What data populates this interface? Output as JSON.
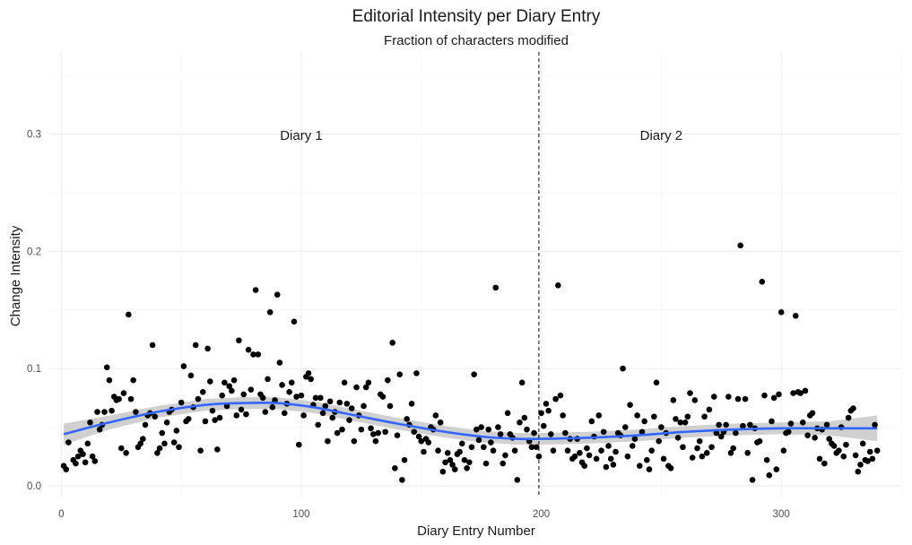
{
  "chart_data": {
    "type": "scatter",
    "title": "Editorial Intensity per Diary Entry",
    "subtitle": "Fraction of characters modified",
    "xlabel": "Diary Entry Number",
    "ylabel": "Change Intensity",
    "xlim": [
      -5,
      350
    ],
    "ylim": [
      -0.01,
      0.37
    ],
    "x_ticks": [
      0,
      100,
      200,
      300
    ],
    "y_ticks": [
      0.0,
      0.1,
      0.2,
      0.3
    ],
    "y_tick_labels": [
      "0.0",
      "0.1",
      "0.2",
      "0.3"
    ],
    "grid": true,
    "vline": {
      "x": 199,
      "style": "dashed"
    },
    "annotations": [
      {
        "text": "Diary 1",
        "x": 100,
        "y": 0.299
      },
      {
        "text": "Diary 2",
        "x": 250,
        "y": 0.299
      }
    ],
    "colors": {
      "points": "#000000",
      "smooth": "#3366ff",
      "ribbon": "#c8c8c8"
    },
    "smooth": {
      "x": [
        1,
        20,
        40,
        60,
        75,
        90,
        105,
        120,
        140,
        160,
        175,
        190,
        200,
        220,
        240,
        260,
        280,
        300,
        320,
        340
      ],
      "y": [
        0.044,
        0.054,
        0.063,
        0.069,
        0.0705,
        0.0705,
        0.067,
        0.061,
        0.053,
        0.046,
        0.042,
        0.04,
        0.04,
        0.041,
        0.043,
        0.046,
        0.048,
        0.049,
        0.049,
        0.049
      ],
      "se": [
        0.009,
        0.006,
        0.005,
        0.005,
        0.005,
        0.005,
        0.005,
        0.005,
        0.005,
        0.005,
        0.005,
        0.005,
        0.005,
        0.005,
        0.005,
        0.005,
        0.005,
        0.005,
        0.006,
        0.011
      ]
    },
    "points": [
      [
        1,
        0.017
      ],
      [
        2,
        0.014
      ],
      [
        3,
        0.037
      ],
      [
        5,
        0.022
      ],
      [
        6,
        0.019
      ],
      [
        7,
        0.025
      ],
      [
        8,
        0.03
      ],
      [
        9,
        0.027
      ],
      [
        10,
        0.02
      ],
      [
        11,
        0.036
      ],
      [
        12,
        0.054
      ],
      [
        13,
        0.025
      ],
      [
        14,
        0.021
      ],
      [
        15,
        0.063
      ],
      [
        16,
        0.048
      ],
      [
        17,
        0.052
      ],
      [
        18,
        0.063
      ],
      [
        19,
        0.101
      ],
      [
        20,
        0.09
      ],
      [
        21,
        0.064
      ],
      [
        22,
        0.076
      ],
      [
        23,
        0.073
      ],
      [
        24,
        0.074
      ],
      [
        25,
        0.032
      ],
      [
        26,
        0.079
      ],
      [
        27,
        0.028
      ],
      [
        28,
        0.146
      ],
      [
        29,
        0.074
      ],
      [
        30,
        0.09
      ],
      [
        31,
        0.063
      ],
      [
        32,
        0.033
      ],
      [
        33,
        0.036
      ],
      [
        34,
        0.04
      ],
      [
        35,
        0.052
      ],
      [
        36,
        0.06
      ],
      [
        37,
        0.062
      ],
      [
        38,
        0.12
      ],
      [
        39,
        0.059
      ],
      [
        40,
        0.028
      ],
      [
        41,
        0.032
      ],
      [
        42,
        0.045
      ],
      [
        43,
        0.036
      ],
      [
        44,
        0.054
      ],
      [
        45,
        0.063
      ],
      [
        46,
        0.065
      ],
      [
        47,
        0.037
      ],
      [
        48,
        0.047
      ],
      [
        49,
        0.033
      ],
      [
        50,
        0.071
      ],
      [
        51,
        0.102
      ],
      [
        52,
        0.055
      ],
      [
        53,
        0.057
      ],
      [
        54,
        0.094
      ],
      [
        55,
        0.067
      ],
      [
        56,
        0.12
      ],
      [
        57,
        0.074
      ],
      [
        58,
        0.03
      ],
      [
        59,
        0.08
      ],
      [
        60,
        0.055
      ],
      [
        61,
        0.117
      ],
      [
        62,
        0.089
      ],
      [
        63,
        0.064
      ],
      [
        64,
        0.056
      ],
      [
        65,
        0.031
      ],
      [
        66,
        0.058
      ],
      [
        67,
        0.077
      ],
      [
        68,
        0.088
      ],
      [
        69,
        0.068
      ],
      [
        70,
        0.085
      ],
      [
        71,
        0.081
      ],
      [
        72,
        0.09
      ],
      [
        73,
        0.06
      ],
      [
        74,
        0.124
      ],
      [
        75,
        0.065
      ],
      [
        76,
        0.078
      ],
      [
        77,
        0.061
      ],
      [
        78,
        0.116
      ],
      [
        79,
        0.082
      ],
      [
        80,
        0.112
      ],
      [
        81,
        0.167
      ],
      [
        82,
        0.112
      ],
      [
        83,
        0.078
      ],
      [
        84,
        0.075
      ],
      [
        85,
        0.063
      ],
      [
        86,
        0.091
      ],
      [
        87,
        0.148
      ],
      [
        88,
        0.067
      ],
      [
        89,
        0.073
      ],
      [
        90,
        0.163
      ],
      [
        91,
        0.105
      ],
      [
        92,
        0.086
      ],
      [
        93,
        0.062
      ],
      [
        94,
        0.07
      ],
      [
        95,
        0.08
      ],
      [
        96,
        0.088
      ],
      [
        97,
        0.14
      ],
      [
        98,
        0.076
      ],
      [
        99,
        0.035
      ],
      [
        100,
        0.077
      ],
      [
        101,
        0.06
      ],
      [
        102,
        0.093
      ],
      [
        103,
        0.096
      ],
      [
        104,
        0.091
      ],
      [
        105,
        0.069
      ],
      [
        106,
        0.075
      ],
      [
        107,
        0.052
      ],
      [
        108,
        0.075
      ],
      [
        109,
        0.062
      ],
      [
        110,
        0.068
      ],
      [
        111,
        0.038
      ],
      [
        112,
        0.072
      ],
      [
        113,
        0.058
      ],
      [
        114,
        0.063
      ],
      [
        115,
        0.045
      ],
      [
        116,
        0.071
      ],
      [
        117,
        0.048
      ],
      [
        118,
        0.088
      ],
      [
        119,
        0.07
      ],
      [
        120,
        0.056
      ],
      [
        121,
        0.066
      ],
      [
        122,
        0.038
      ],
      [
        123,
        0.084
      ],
      [
        124,
        0.06
      ],
      [
        125,
        0.048
      ],
      [
        126,
        0.068
      ],
      [
        127,
        0.084
      ],
      [
        128,
        0.088
      ],
      [
        129,
        0.049
      ],
      [
        130,
        0.044
      ],
      [
        131,
        0.038
      ],
      [
        132,
        0.045
      ],
      [
        133,
        0.078
      ],
      [
        134,
        0.076
      ],
      [
        135,
        0.046
      ],
      [
        136,
        0.09
      ],
      [
        137,
        0.068
      ],
      [
        138,
        0.122
      ],
      [
        139,
        0.015
      ],
      [
        140,
        0.043
      ],
      [
        141,
        0.095
      ],
      [
        142,
        0.005
      ],
      [
        143,
        0.022
      ],
      [
        144,
        0.057
      ],
      [
        145,
        0.052
      ],
      [
        146,
        0.07
      ],
      [
        147,
        0.046
      ],
      [
        148,
        0.096
      ],
      [
        149,
        0.042
      ],
      [
        150,
        0.038
      ],
      [
        151,
        0.029
      ],
      [
        152,
        0.04
      ],
      [
        153,
        0.037
      ],
      [
        154,
        0.05
      ],
      [
        155,
        0.048
      ],
      [
        156,
        0.06
      ],
      [
        157,
        0.03
      ],
      [
        158,
        0.054
      ],
      [
        159,
        0.012
      ],
      [
        160,
        0.02
      ],
      [
        161,
        0.028
      ],
      [
        162,
        0.022
      ],
      [
        163,
        0.018
      ],
      [
        164,
        0.014
      ],
      [
        165,
        0.027
      ],
      [
        166,
        0.029
      ],
      [
        167,
        0.036
      ],
      [
        168,
        0.022
      ],
      [
        169,
        0.015
      ],
      [
        170,
        0.02
      ],
      [
        171,
        0.033
      ],
      [
        172,
        0.095
      ],
      [
        173,
        0.048
      ],
      [
        174,
        0.039
      ],
      [
        175,
        0.05
      ],
      [
        176,
        0.033
      ],
      [
        177,
        0.019
      ],
      [
        178,
        0.048
      ],
      [
        179,
        0.037
      ],
      [
        180,
        0.03
      ],
      [
        181,
        0.169
      ],
      [
        182,
        0.05
      ],
      [
        183,
        0.044
      ],
      [
        184,
        0.019
      ],
      [
        185,
        0.026
      ],
      [
        186,
        0.062
      ],
      [
        187,
        0.044
      ],
      [
        188,
        0.041
      ],
      [
        189,
        0.03
      ],
      [
        190,
        0.005
      ],
      [
        191,
        0.054
      ],
      [
        192,
        0.088
      ],
      [
        193,
        0.058
      ],
      [
        194,
        0.048
      ],
      [
        195,
        0.038
      ],
      [
        196,
        0.033
      ],
      [
        197,
        0.045
      ],
      [
        198,
        0.033
      ],
      [
        199,
        0.025
      ],
      [
        200,
        0.062
      ],
      [
        201,
        0.051
      ],
      [
        202,
        0.07
      ],
      [
        203,
        0.064
      ],
      [
        204,
        0.044
      ],
      [
        205,
        0.03
      ],
      [
        206,
        0.074
      ],
      [
        207,
        0.171
      ],
      [
        208,
        0.077
      ],
      [
        209,
        0.06
      ],
      [
        210,
        0.045
      ],
      [
        211,
        0.03
      ],
      [
        212,
        0.04
      ],
      [
        213,
        0.023
      ],
      [
        214,
        0.025
      ],
      [
        215,
        0.04
      ],
      [
        216,
        0.028
      ],
      [
        217,
        0.02
      ],
      [
        218,
        0.017
      ],
      [
        219,
        0.032
      ],
      [
        220,
        0.026
      ],
      [
        221,
        0.055
      ],
      [
        222,
        0.042
      ],
      [
        223,
        0.023
      ],
      [
        224,
        0.06
      ],
      [
        225,
        0.03
      ],
      [
        226,
        0.046
      ],
      [
        227,
        0.016
      ],
      [
        228,
        0.034
      ],
      [
        229,
        0.023
      ],
      [
        230,
        0.018
      ],
      [
        231,
        0.029
      ],
      [
        232,
        0.045
      ],
      [
        233,
        0.043
      ],
      [
        234,
        0.1
      ],
      [
        235,
        0.05
      ],
      [
        236,
        0.025
      ],
      [
        237,
        0.069
      ],
      [
        238,
        0.034
      ],
      [
        239,
        0.04
      ],
      [
        240,
        0.06
      ],
      [
        241,
        0.017
      ],
      [
        242,
        0.046
      ],
      [
        243,
        0.055
      ],
      [
        244,
        0.022
      ],
      [
        245,
        0.014
      ],
      [
        246,
        0.03
      ],
      [
        247,
        0.059
      ],
      [
        248,
        0.088
      ],
      [
        249,
        0.038
      ],
      [
        250,
        0.05
      ],
      [
        251,
        0.023
      ],
      [
        252,
        0.045
      ],
      [
        253,
        0.017
      ],
      [
        254,
        0.015
      ],
      [
        255,
        0.073
      ],
      [
        256,
        0.057
      ],
      [
        257,
        0.041
      ],
      [
        258,
        0.054
      ],
      [
        259,
        0.033
      ],
      [
        260,
        0.054
      ],
      [
        261,
        0.059
      ],
      [
        262,
        0.079
      ],
      [
        263,
        0.024
      ],
      [
        264,
        0.073
      ],
      [
        265,
        0.032
      ],
      [
        266,
        0.038
      ],
      [
        267,
        0.025
      ],
      [
        268,
        0.059
      ],
      [
        269,
        0.028
      ],
      [
        270,
        0.065
      ],
      [
        271,
        0.033
      ],
      [
        272,
        0.076
      ],
      [
        273,
        0.045
      ],
      [
        274,
        0.052
      ],
      [
        275,
        0.042
      ],
      [
        276,
        0.046
      ],
      [
        277,
        0.052
      ],
      [
        278,
        0.076
      ],
      [
        279,
        0.028
      ],
      [
        280,
        0.032
      ],
      [
        281,
        0.045
      ],
      [
        282,
        0.074
      ],
      [
        283,
        0.205
      ],
      [
        284,
        0.051
      ],
      [
        285,
        0.074
      ],
      [
        286,
        0.028
      ],
      [
        287,
        0.052
      ],
      [
        288,
        0.005
      ],
      [
        289,
        0.049
      ],
      [
        290,
        0.037
      ],
      [
        291,
        0.038
      ],
      [
        292,
        0.174
      ],
      [
        293,
        0.077
      ],
      [
        294,
        0.022
      ],
      [
        295,
        0.009
      ],
      [
        296,
        0.055
      ],
      [
        297,
        0.075
      ],
      [
        298,
        0.014
      ],
      [
        299,
        0.078
      ],
      [
        300,
        0.148
      ],
      [
        301,
        0.03
      ],
      [
        302,
        0.045
      ],
      [
        303,
        0.046
      ],
      [
        304,
        0.053
      ],
      [
        305,
        0.079
      ],
      [
        306,
        0.145
      ],
      [
        307,
        0.08
      ],
      [
        308,
        0.079
      ],
      [
        309,
        0.054
      ],
      [
        310,
        0.081
      ],
      [
        311,
        0.043
      ],
      [
        312,
        0.06
      ],
      [
        313,
        0.062
      ],
      [
        314,
        0.041
      ],
      [
        315,
        0.049
      ],
      [
        316,
        0.023
      ],
      [
        317,
        0.048
      ],
      [
        318,
        0.019
      ],
      [
        319,
        0.052
      ],
      [
        320,
        0.04
      ],
      [
        321,
        0.036
      ],
      [
        322,
        0.034
      ],
      [
        323,
        0.028
      ],
      [
        324,
        0.03
      ],
      [
        325,
        0.05
      ],
      [
        326,
        0.025
      ],
      [
        327,
        0.035
      ],
      [
        328,
        0.058
      ],
      [
        329,
        0.064
      ],
      [
        330,
        0.066
      ],
      [
        331,
        0.026
      ],
      [
        332,
        0.012
      ],
      [
        333,
        0.018
      ],
      [
        334,
        0.036
      ],
      [
        335,
        0.022
      ],
      [
        336,
        0.021
      ],
      [
        337,
        0.029
      ],
      [
        338,
        0.023
      ],
      [
        339,
        0.052
      ],
      [
        340,
        0.03
      ]
    ]
  }
}
